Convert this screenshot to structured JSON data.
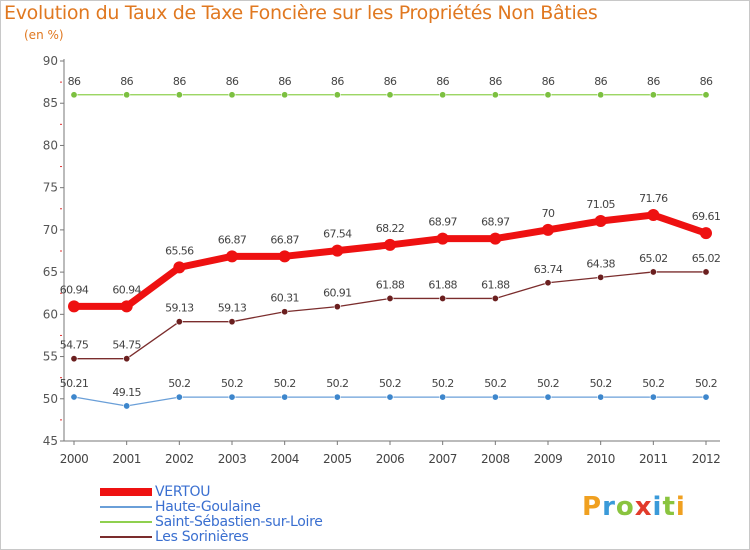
{
  "page": {
    "title": "Evolution du Taux de Taxe Foncière sur les Propriétés Non Bâties",
    "unit": "(en %)"
  },
  "chart_data": {
    "type": "line",
    "title": "Evolution du Taux de Taxe Foncière sur les Propriétés Non Bâties",
    "ylabel": "(en %)",
    "xlabel": "",
    "ylim": [
      45,
      90
    ],
    "yticks": [
      45,
      50,
      55,
      60,
      65,
      70,
      75,
      80,
      85,
      90
    ],
    "grid": false,
    "legend_position": "bottom-left",
    "categories": [
      "2000",
      "2001",
      "2002",
      "2003",
      "2004",
      "2005",
      "2006",
      "2007",
      "2008",
      "2009",
      "2010",
      "2011",
      "2012"
    ],
    "series": [
      {
        "name": "Saint-Sébastien-sur-Loire",
        "color": "#8fd04f",
        "marker_color": "#7cc040",
        "values": [
          86,
          86,
          86,
          86,
          86,
          86,
          86,
          86,
          86,
          86,
          86,
          86,
          86
        ],
        "labels": [
          "86",
          "86",
          "86",
          "86",
          "86",
          "86",
          "86",
          "86",
          "86",
          "86",
          "86",
          "86",
          "86"
        ]
      },
      {
        "name": "VERTOU",
        "color": "#ee1111",
        "marker_color": "#ee1111",
        "values": [
          60.94,
          60.94,
          65.56,
          66.87,
          66.87,
          67.54,
          68.22,
          68.97,
          68.97,
          70,
          71.05,
          71.76,
          69.61
        ],
        "labels": [
          "60.94",
          "60.94",
          "65.56",
          "66.87",
          "66.87",
          "67.54",
          "68.22",
          "68.97",
          "68.97",
          "70",
          "71.05",
          "71.76",
          "69.61"
        ]
      },
      {
        "name": "Les Sorinières",
        "color": "#7b2d2d",
        "marker_color": "#6b1f1f",
        "values": [
          54.75,
          54.75,
          59.13,
          59.13,
          60.31,
          60.91,
          61.88,
          61.88,
          61.88,
          63.74,
          64.38,
          65.02,
          65.02
        ],
        "labels": [
          "54.75",
          "54.75",
          "59.13",
          "59.13",
          "60.31",
          "60.91",
          "61.88",
          "61.88",
          "61.88",
          "63.74",
          "64.38",
          "65.02",
          "65.02"
        ]
      },
      {
        "name": "Haute-Goulaine",
        "color": "#6a9fd8",
        "marker_color": "#3d86cc",
        "values": [
          50.21,
          49.15,
          50.2,
          50.2,
          50.2,
          50.2,
          50.2,
          50.2,
          50.2,
          50.2,
          50.2,
          50.2,
          50.2
        ],
        "labels": [
          "50.21",
          "49.15",
          "50.2",
          "50.2",
          "50.2",
          "50.2",
          "50.2",
          "50.2",
          "50.2",
          "50.2",
          "50.2",
          "50.2",
          "50.2"
        ]
      }
    ]
  },
  "legend": [
    {
      "label": "VERTOU",
      "color": "#ee1111"
    },
    {
      "label": "Haute-Goulaine",
      "color": "#6a9fd8"
    },
    {
      "label": "Saint-Sébastien-sur-Loire",
      "color": "#8fd04f"
    },
    {
      "label": "Les Sorinières",
      "color": "#7b2d2d"
    }
  ],
  "logo": {
    "letters": [
      "P",
      "r",
      "o",
      "x",
      "i",
      "t",
      "i"
    ],
    "colors": [
      "#f0a020",
      "#3a9ad9",
      "#8ac43f",
      "#e23b2b",
      "#3a9ad9",
      "#8ac43f",
      "#f0a020"
    ]
  }
}
